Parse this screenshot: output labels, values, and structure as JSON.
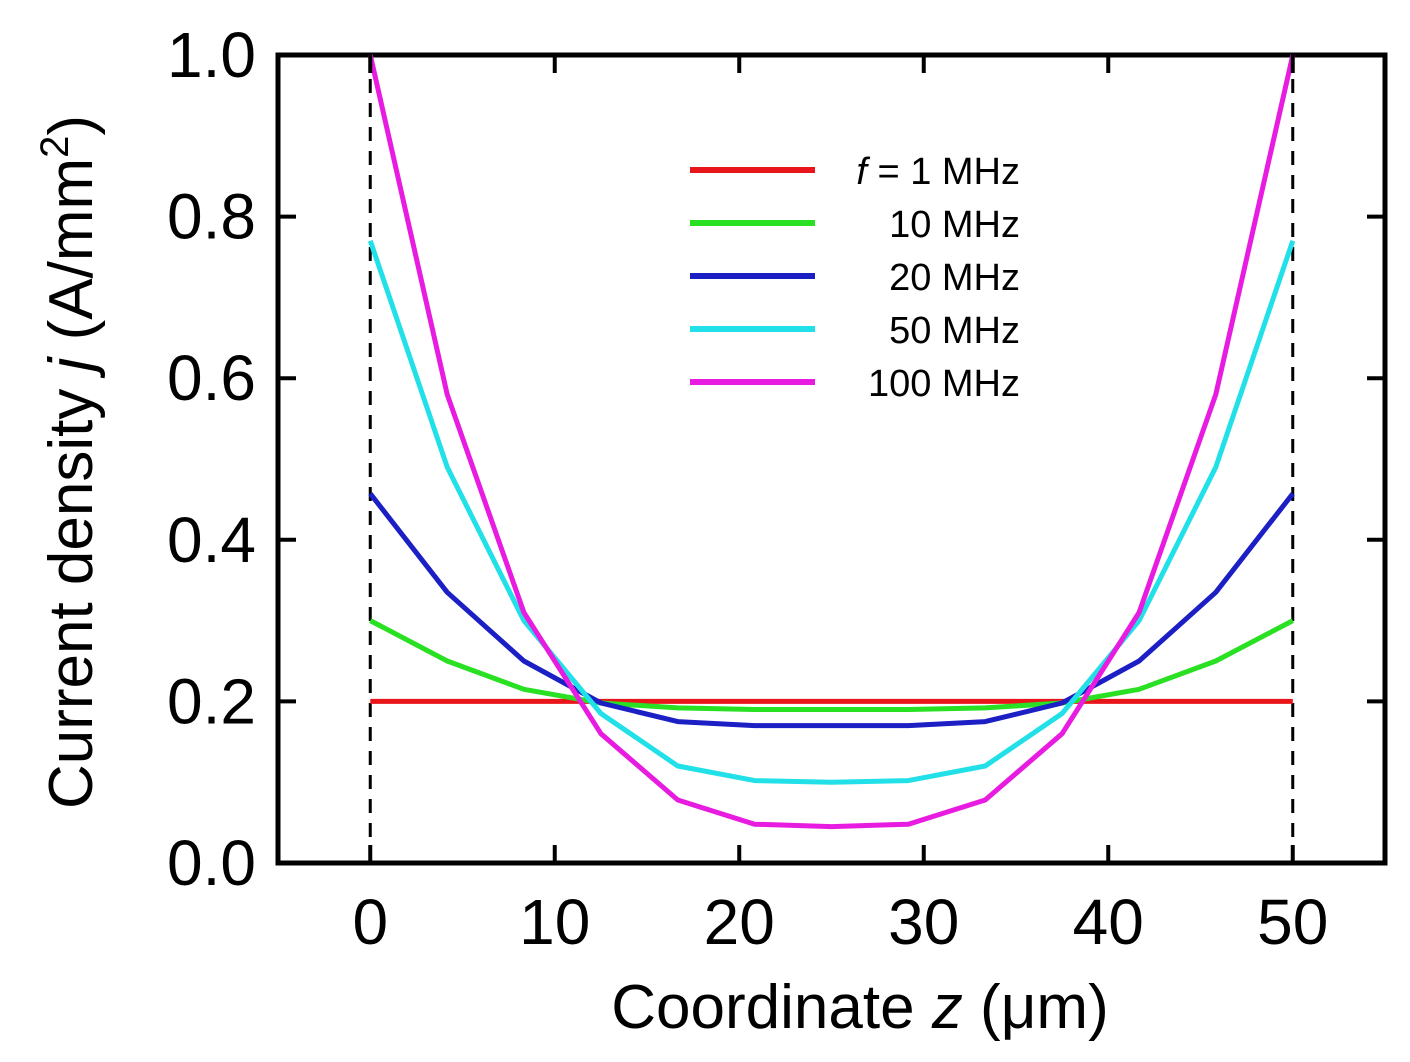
{
  "chart_data": {
    "type": "line",
    "xlabel_prefix": "Coordinate ",
    "xlabel_var": "z",
    "xlabel_unit": " (μm)",
    "ylabel_prefix": "Current density ",
    "ylabel_var": "j",
    "ylabel_unit": " (A/mm",
    "ylabel_sup": "2",
    "ylabel_close": ")",
    "xlim": [
      -5,
      55
    ],
    "ylim": [
      0,
      1.0
    ],
    "xticks": [
      0,
      10,
      20,
      30,
      40,
      50
    ],
    "xtick_labels": [
      "0",
      "10",
      "20",
      "30",
      "40",
      "50"
    ],
    "yticks": [
      0,
      0.2,
      0.4,
      0.6,
      0.8,
      1.0
    ],
    "ytick_labels": [
      "0.0",
      "0.2",
      "0.4",
      "0.6",
      "0.8",
      "1.0"
    ],
    "grid": false,
    "legend_position": "top-center",
    "reference_lines": [
      0,
      50
    ],
    "legend_prefix": "f",
    "legend_prefix_suffix": " = ",
    "x": [
      0,
      4.17,
      8.33,
      12.5,
      16.67,
      20.83,
      25,
      29.17,
      33.33,
      37.5,
      41.67,
      45.83,
      50
    ],
    "series": [
      {
        "name": "1 MHz",
        "color": "#e8161b",
        "values": [
          0.2,
          0.2,
          0.2,
          0.2,
          0.2,
          0.2,
          0.2,
          0.2,
          0.2,
          0.2,
          0.2,
          0.2,
          0.2
        ]
      },
      {
        "name": "10 MHz",
        "color": "#29e022",
        "values": [
          0.3,
          0.25,
          0.215,
          0.198,
          0.192,
          0.19,
          0.19,
          0.19,
          0.192,
          0.198,
          0.215,
          0.25,
          0.3
        ]
      },
      {
        "name": "20 MHz",
        "color": "#1b1fc4",
        "values": [
          0.457,
          0.335,
          0.25,
          0.198,
          0.175,
          0.17,
          0.17,
          0.17,
          0.175,
          0.198,
          0.25,
          0.335,
          0.457
        ]
      },
      {
        "name": "50 MHz",
        "color": "#22e0e8",
        "values": [
          0.77,
          0.49,
          0.3,
          0.185,
          0.12,
          0.102,
          0.1,
          0.102,
          0.12,
          0.185,
          0.3,
          0.49,
          0.77
        ]
      },
      {
        "name": "100 MHz",
        "color": "#e81be0",
        "values": [
          1.0,
          0.58,
          0.31,
          0.16,
          0.078,
          0.048,
          0.045,
          0.048,
          0.078,
          0.16,
          0.31,
          0.58,
          1.0
        ]
      }
    ]
  }
}
